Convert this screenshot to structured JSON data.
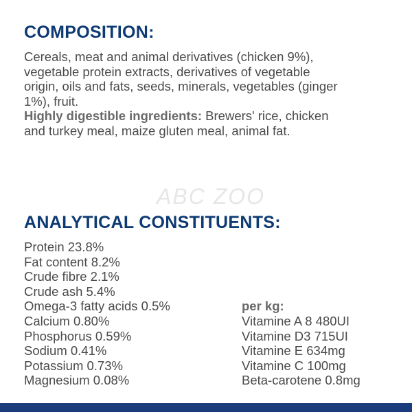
{
  "composition": {
    "title": "COMPOSITION:",
    "lines": [
      "Cereals, meat and animal derivatives (chicken 9%),",
      "vegetable protein extracts, derivatives of vegetable",
      "origin, oils and fats, seeds, minerals, vegetables (ginger",
      "1%), fruit."
    ],
    "highlight_label": "Highly digestible ingredients:",
    "highlight_line1": " Brewers' rice, chicken",
    "highlight_line2": "and turkey meal, maize gluten meal, animal fat."
  },
  "watermark": "ABC ZOO",
  "analytical": {
    "title": "ANALYTICAL CONSTITUENTS:",
    "items": [
      "Protein 23.8%",
      "Fat content 8.2%",
      "Crude fibre 2.1%",
      "Crude ash 5.4%",
      "Omega-3 fatty acids 0.5%",
      "Calcium 0.80%",
      "Phosphorus 0.59%",
      "Sodium 0.41%",
      "Potassium 0.73%",
      "Magnesium 0.08%"
    ],
    "per_kg_label": "per kg:",
    "per_kg": [
      "Vitamine A 8 480UI",
      "Vitamine D3 715UI",
      "Vitamine E 634mg",
      "Vitamine C 100mg",
      "Beta-carotene 0.8mg"
    ]
  },
  "colors": {
    "heading": "#0e3a73",
    "text": "#4a4a4a",
    "bottom_bar": "#1b3c7c"
  }
}
